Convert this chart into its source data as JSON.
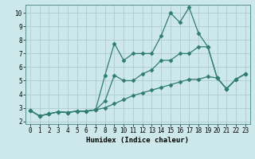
{
  "xlabel": "Humidex (Indice chaleur)",
  "bg_color": "#cde8ea",
  "grid_color": "#b0cccc",
  "line_color": "#2e7d72",
  "xlim": [
    -0.5,
    23.5
  ],
  "ylim": [
    1.8,
    10.6
  ],
  "xticks": [
    0,
    1,
    2,
    3,
    4,
    5,
    6,
    7,
    8,
    9,
    10,
    11,
    12,
    13,
    14,
    15,
    16,
    17,
    18,
    19,
    20,
    21,
    22,
    23
  ],
  "yticks": [
    2,
    3,
    4,
    5,
    6,
    7,
    8,
    9,
    10
  ],
  "line1_x": [
    0,
    1,
    2,
    3,
    4,
    5,
    6,
    7,
    8,
    9,
    10,
    11,
    12,
    13,
    14,
    15,
    16,
    17,
    18,
    19,
    20,
    21,
    22,
    23
  ],
  "line1_y": [
    2.8,
    2.4,
    2.55,
    2.7,
    2.65,
    2.75,
    2.75,
    2.85,
    5.4,
    7.75,
    6.5,
    7.0,
    7.0,
    7.0,
    8.3,
    10.0,
    9.3,
    10.4,
    8.5,
    7.5,
    5.2,
    4.4,
    5.1,
    5.5
  ],
  "line2_x": [
    0,
    1,
    2,
    3,
    4,
    5,
    6,
    7,
    8,
    9,
    10,
    11,
    12,
    13,
    14,
    15,
    16,
    17,
    18,
    19,
    20,
    21,
    22,
    23
  ],
  "line2_y": [
    2.8,
    2.4,
    2.55,
    2.7,
    2.65,
    2.75,
    2.75,
    2.85,
    3.5,
    5.4,
    5.0,
    5.0,
    5.5,
    5.8,
    6.5,
    6.5,
    7.0,
    7.0,
    7.5,
    7.5,
    5.2,
    4.4,
    5.1,
    5.5
  ],
  "line3_x": [
    0,
    1,
    2,
    3,
    4,
    5,
    6,
    7,
    8,
    9,
    10,
    11,
    12,
    13,
    14,
    15,
    16,
    17,
    18,
    19,
    20,
    21,
    22,
    23
  ],
  "line3_y": [
    2.8,
    2.4,
    2.55,
    2.7,
    2.65,
    2.75,
    2.75,
    2.85,
    3.0,
    3.3,
    3.6,
    3.9,
    4.1,
    4.3,
    4.5,
    4.7,
    4.9,
    5.1,
    5.1,
    5.3,
    5.2,
    4.4,
    5.1,
    5.5
  ]
}
